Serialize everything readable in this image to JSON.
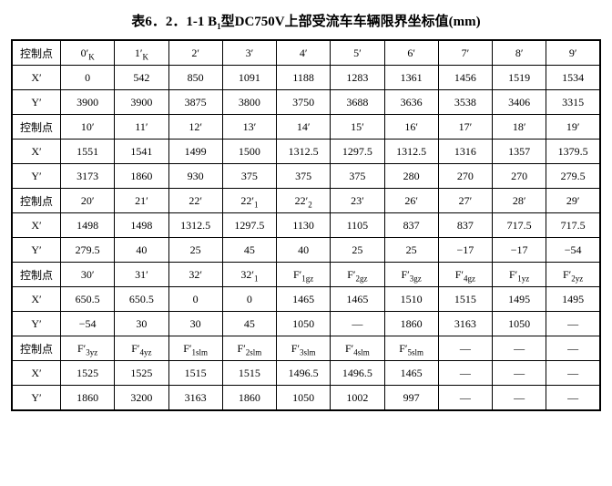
{
  "title_parts": {
    "pre": "表6．2．1-1 B",
    "sub": "1",
    "post": "型DC750V上部受流车车辆限界坐标值(mm)"
  },
  "row_labels": {
    "ctrl": "控制点",
    "x": "X′",
    "y": "Y′"
  },
  "blocks": [
    {
      "ctrl": [
        "0′<sub>K</sub>",
        "1′<sub>K</sub>",
        "2′",
        "3′",
        "4′",
        "5′",
        "6′",
        "7′",
        "8′",
        "9′"
      ],
      "x": [
        "0",
        "542",
        "850",
        "1091",
        "1188",
        "1283",
        "1361",
        "1456",
        "1519",
        "1534"
      ],
      "y": [
        "3900",
        "3900",
        "3875",
        "3800",
        "3750",
        "3688",
        "3636",
        "3538",
        "3406",
        "3315"
      ]
    },
    {
      "ctrl": [
        "10′",
        "11′",
        "12′",
        "13′",
        "14′",
        "15′",
        "16′",
        "17′",
        "18′",
        "19′"
      ],
      "x": [
        "1551",
        "1541",
        "1499",
        "1500",
        "1312.5",
        "1297.5",
        "1312.5",
        "1316",
        "1357",
        "1379.5"
      ],
      "y": [
        "3173",
        "1860",
        "930",
        "375",
        "375",
        "375",
        "280",
        "270",
        "270",
        "279.5"
      ]
    },
    {
      "ctrl": [
        "20′",
        "21′",
        "22′",
        "22′<sub>1</sub>",
        "22′<sub>2</sub>",
        "23′",
        "26′",
        "27′",
        "28′",
        "29′"
      ],
      "x": [
        "1498",
        "1498",
        "1312.5",
        "1297.5",
        "1130",
        "1105",
        "837",
        "837",
        "717.5",
        "717.5"
      ],
      "y": [
        "279.5",
        "40",
        "25",
        "45",
        "40",
        "25",
        "25",
        "−17",
        "−17",
        "−54"
      ]
    },
    {
      "ctrl": [
        "30′",
        "31′",
        "32′",
        "32′<sub>1</sub>",
        "F′<sub>1gz</sub>",
        "F′<sub>2gz</sub>",
        "F′<sub>3gz</sub>",
        "F′<sub>4gz</sub>",
        "F′<sub>1yz</sub>",
        "F′<sub>2yz</sub>"
      ],
      "x": [
        "650.5",
        "650.5",
        "0",
        "0",
        "1465",
        "1465",
        "1510",
        "1515",
        "1495",
        "1495"
      ],
      "y": [
        "−54",
        "30",
        "30",
        "45",
        "1050",
        "—",
        "1860",
        "3163",
        "1050",
        "—"
      ]
    },
    {
      "ctrl": [
        "F′<sub>3yz</sub>",
        "F′<sub>4yz</sub>",
        "F′<sub>1slm</sub>",
        "F′<sub>2slm</sub>",
        "F′<sub>3slm</sub>",
        "F′<sub>4slm</sub>",
        "F′<sub>5slm</sub>",
        "—",
        "—",
        "—"
      ],
      "x": [
        "1525",
        "1525",
        "1515",
        "1515",
        "1496.5",
        "1496.5",
        "1465",
        "—",
        "—",
        "—"
      ],
      "y": [
        "1860",
        "3200",
        "3163",
        "1860",
        "1050",
        "1002",
        "997",
        "—",
        "—",
        "—"
      ]
    }
  ]
}
